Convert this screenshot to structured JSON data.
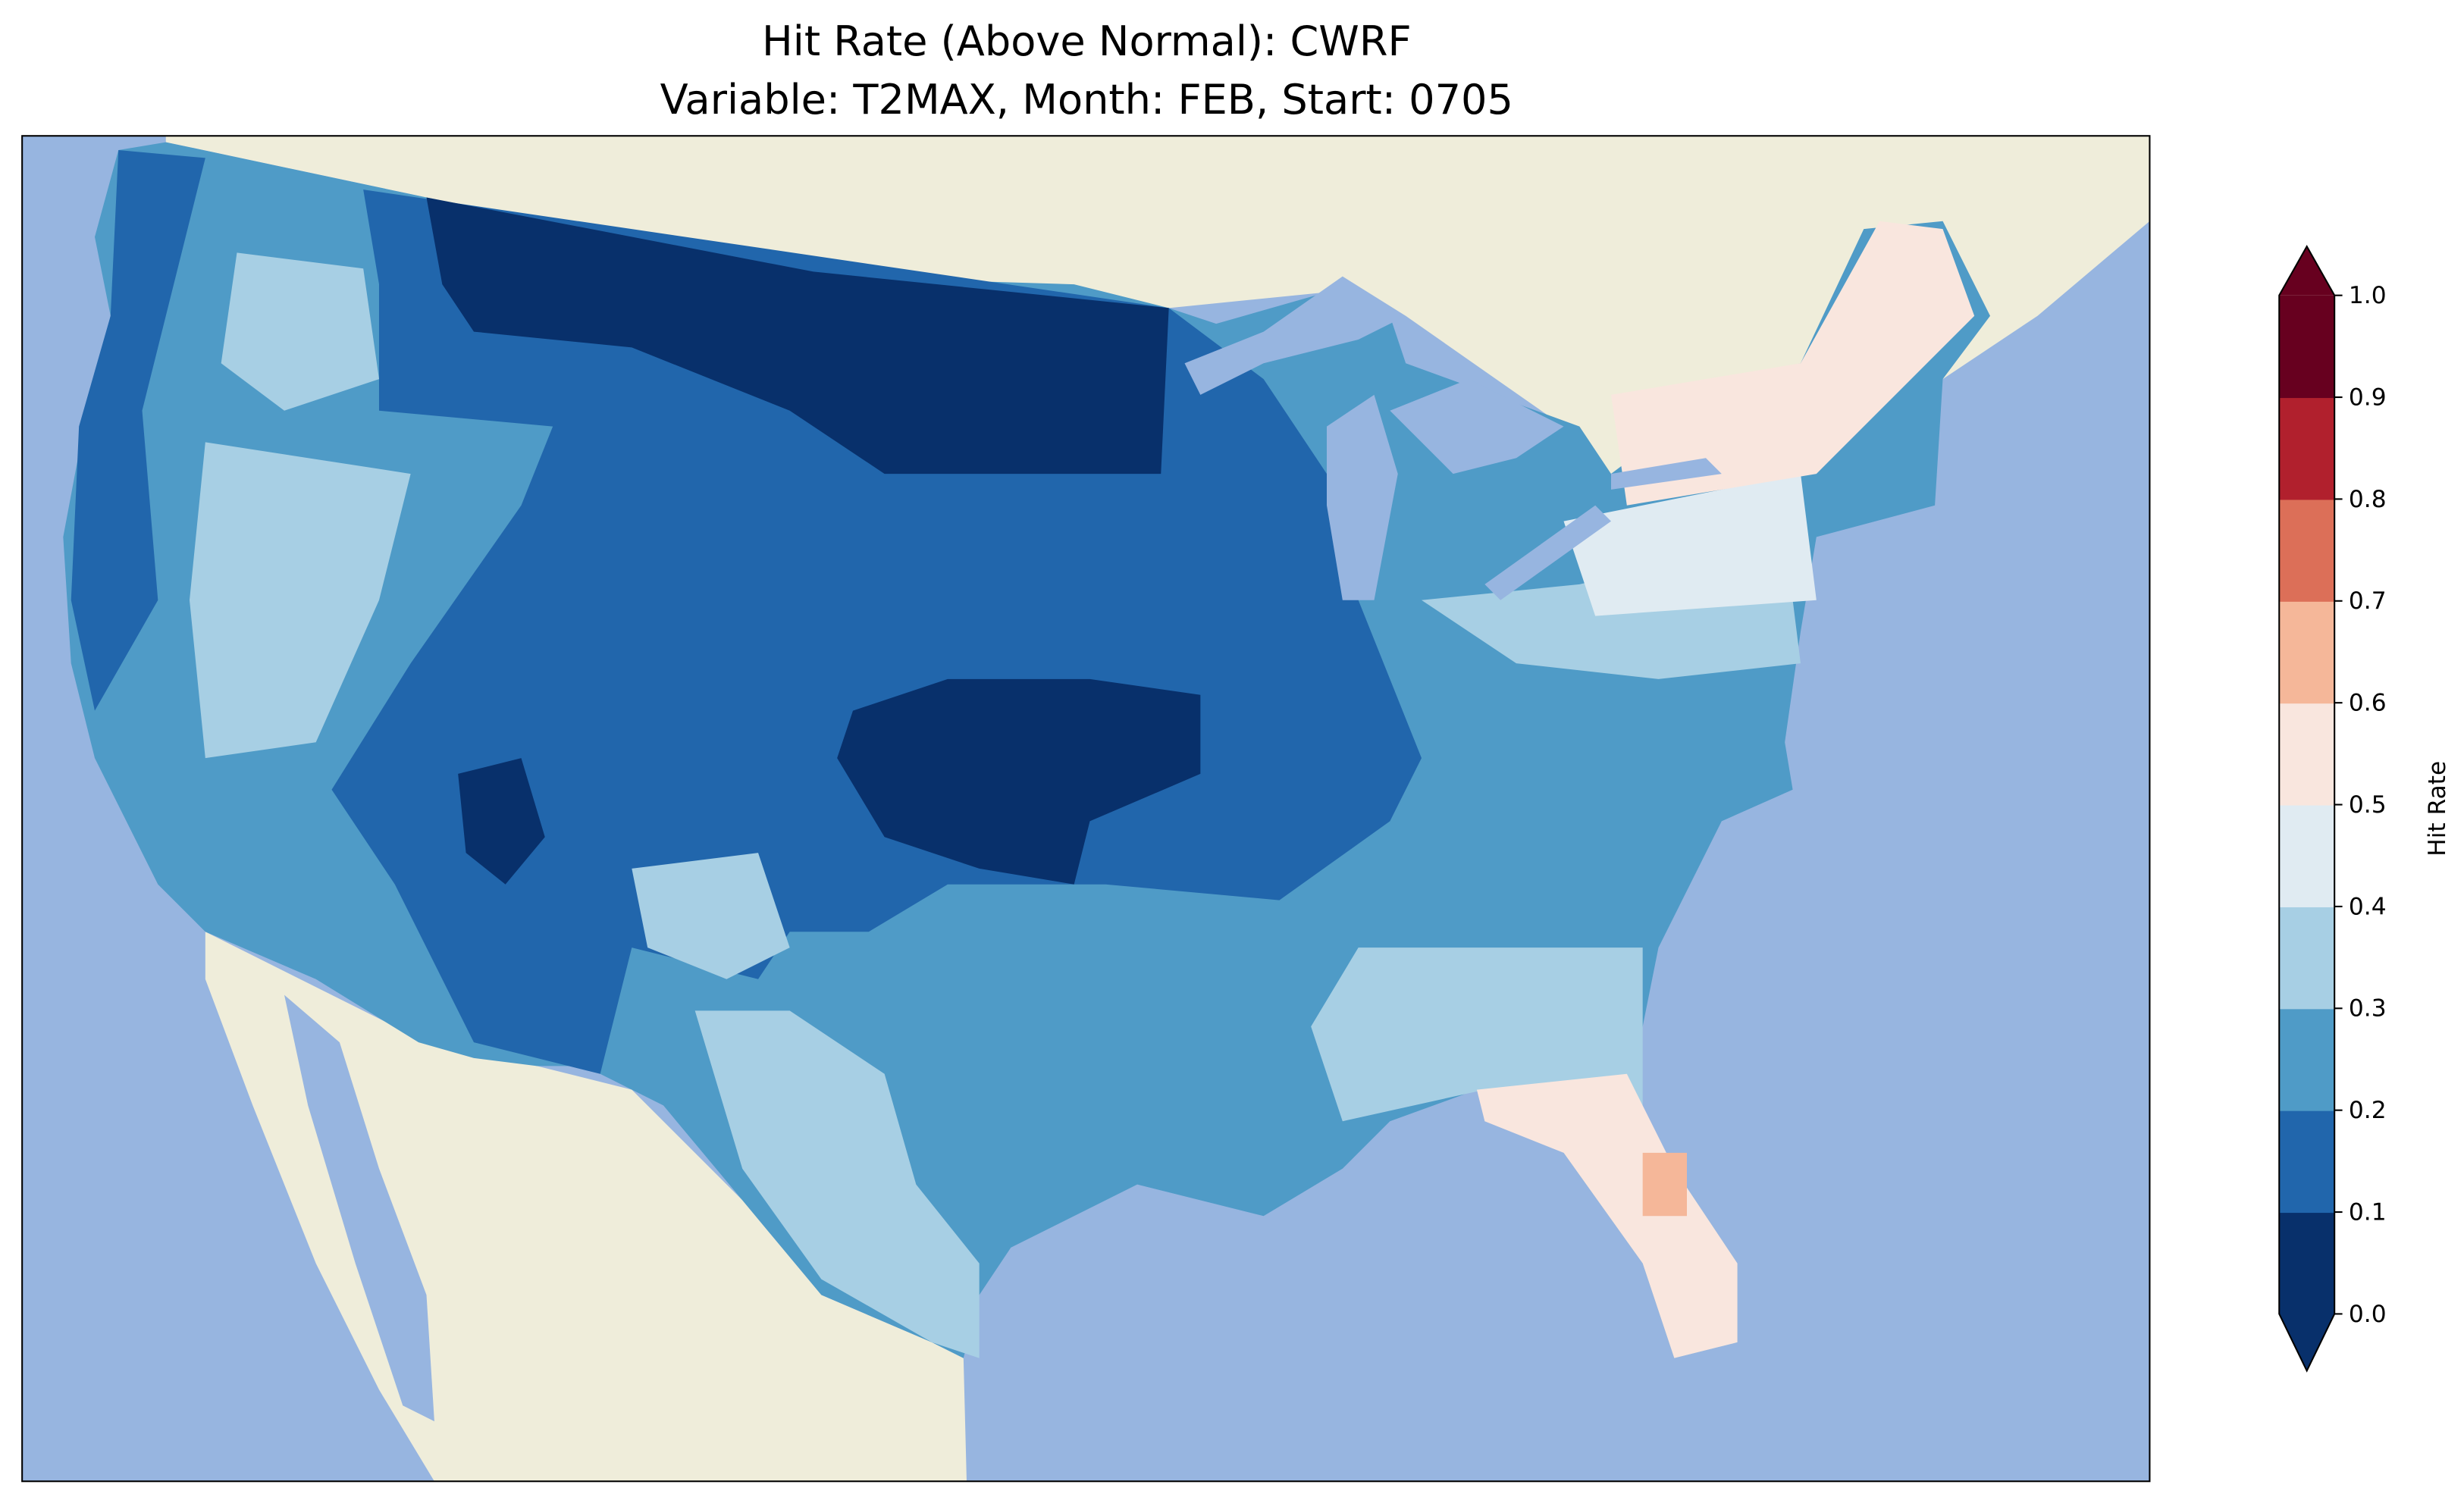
{
  "chart_data": {
    "type": "heatmap",
    "title": "Hit Rate (Above Normal): CWRF",
    "subtitle": "Variable: T2MAX, Month: FEB, Start: 0705",
    "colorbar": {
      "label": "Hit Rate",
      "range": [
        0.0,
        1.0
      ],
      "extend": "both",
      "ticks": [
        "0.0",
        "0.1",
        "0.2",
        "0.3",
        "0.4",
        "0.5",
        "0.6",
        "0.7",
        "0.8",
        "0.9",
        "1.0"
      ],
      "levels": [
        0.0,
        0.1,
        0.2,
        0.3,
        0.4,
        0.5,
        0.6,
        0.7,
        0.8,
        0.9,
        1.0
      ],
      "colors": [
        "#08306b",
        "#2166ac",
        "#4f9bc7",
        "#a7cfe4",
        "#e0ebf2",
        "#f9e6de",
        "#f5b799",
        "#dc6f58",
        "#b1202d",
        "#67001f"
      ]
    },
    "map": {
      "region": "CONUS",
      "ocean_color": "#97b5e0",
      "land_color": "#efedda"
    }
  }
}
